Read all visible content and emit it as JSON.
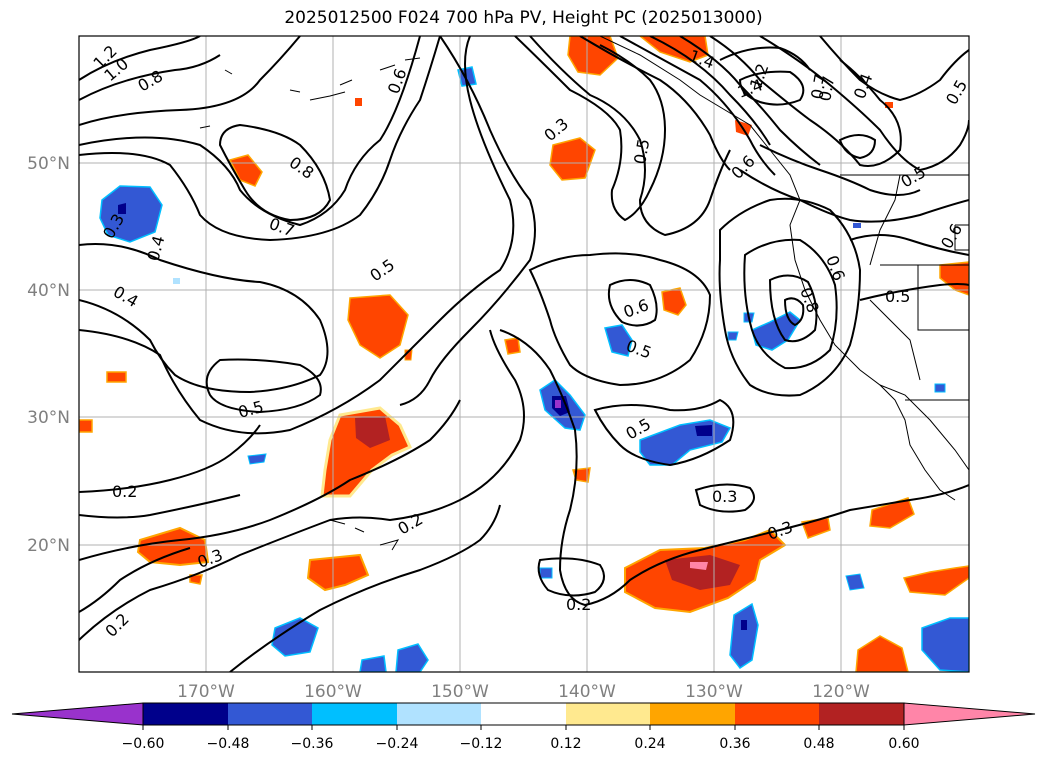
{
  "title": "2025012500 F024 700 hPa PV, Height PC (2025013000)",
  "lat_labels": [
    {
      "text": "50°N",
      "lat": 50
    },
    {
      "text": "40°N",
      "lat": 40
    },
    {
      "text": "30°N",
      "lat": 30
    },
    {
      "text": "20°N",
      "lat": 20
    }
  ],
  "lon_labels": [
    {
      "text": "170°W",
      "lon": -170
    },
    {
      "text": "160°W",
      "lon": -160
    },
    {
      "text": "150°W",
      "lon": -150
    },
    {
      "text": "140°W",
      "lon": -140
    },
    {
      "text": "130°W",
      "lon": -130
    },
    {
      "text": "120°W",
      "lon": -120
    }
  ],
  "colorbar": {
    "ticks": [
      "−0.60",
      "−0.48",
      "−0.36",
      "−0.24",
      "−0.12",
      "0.12",
      "0.24",
      "0.36",
      "0.48",
      "0.60"
    ],
    "colors": [
      "#9932cc",
      "#00008b",
      "#3358d4",
      "#00bfff",
      "#b0e2ff",
      "#ffffff",
      "#ffe98f",
      "#ffa500",
      "#ff4500",
      "#b22222",
      "#ff85a8"
    ]
  },
  "contour_labels": [
    "1.2",
    "1.0",
    "0.8",
    "0.8",
    "0.7",
    "0.6",
    "0.5",
    "0.5",
    "0.4",
    "0.4",
    "0.3",
    "0.3",
    "0.3",
    "0.3",
    "0.3",
    "0.2",
    "0.2",
    "0.2",
    "0.2",
    "0.6",
    "0.5",
    "0.5",
    "0.5",
    "0.6",
    "0.8",
    "0.7",
    "0.6",
    "1.4",
    "1.4",
    "1.2",
    "0.7",
    "0.4",
    "0.5",
    "0.5",
    "0.5",
    "0.6"
  ]
}
